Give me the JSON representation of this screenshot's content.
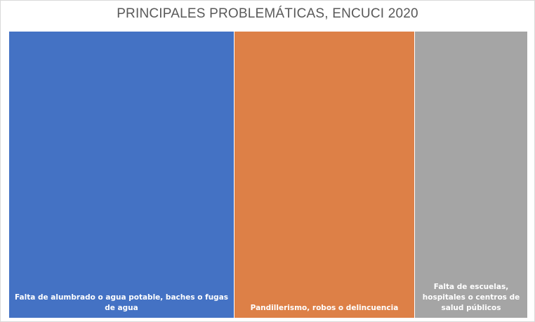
{
  "chart_data": {
    "type": "treemap",
    "title": "PRINCIPALES PROBLEMÁTICAS, ENCUCI 2020",
    "categories": [
      "Falta de alumbrado o agua potable, baches o fugas de agua",
      "Pandillerismo, robos o delincuencia",
      "Falta de escuelas, hospitales o centros de salud públicos"
    ],
    "values": [
      43.5,
      34.8,
      21.7
    ],
    "colors": [
      "#4472c4",
      "#dd8047",
      "#a5a5a5"
    ]
  }
}
